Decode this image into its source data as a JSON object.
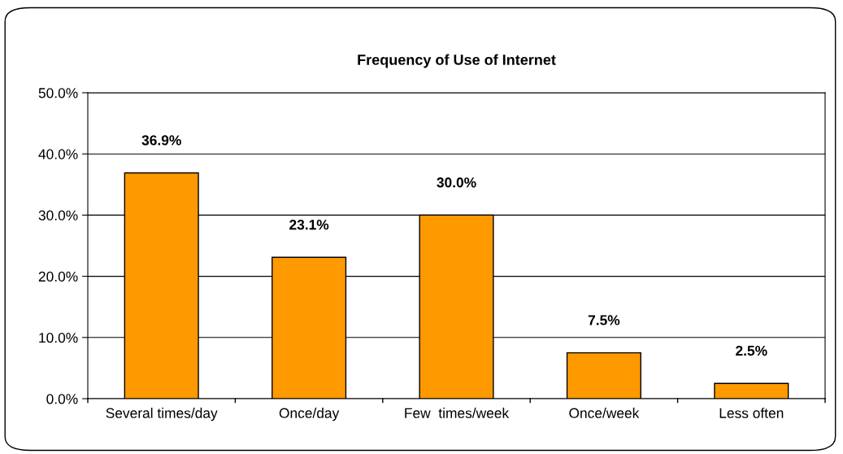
{
  "chart_data": {
    "type": "bar",
    "title": "Frequency of Use of Internet",
    "categories": [
      "Several times/day",
      "Once/day",
      "Few  times/week",
      "Once/week",
      "Less often"
    ],
    "values": [
      36.9,
      23.1,
      30.0,
      7.5,
      2.5
    ],
    "value_labels": [
      "36.9%",
      "23.1%",
      "30.0%",
      "7.5%",
      "2.5%"
    ],
    "color": "#ff9900",
    "ylim": [
      0,
      50
    ],
    "yticks": [
      {
        "value": 0,
        "label": "0.0%"
      },
      {
        "value": 10,
        "label": "10.0%"
      },
      {
        "value": 20,
        "label": "20.0%"
      },
      {
        "value": 30,
        "label": "30.0%"
      },
      {
        "value": 40,
        "label": "40.0%"
      },
      {
        "value": 50,
        "label": "50.0%"
      }
    ],
    "grid": "y",
    "legend": false
  }
}
